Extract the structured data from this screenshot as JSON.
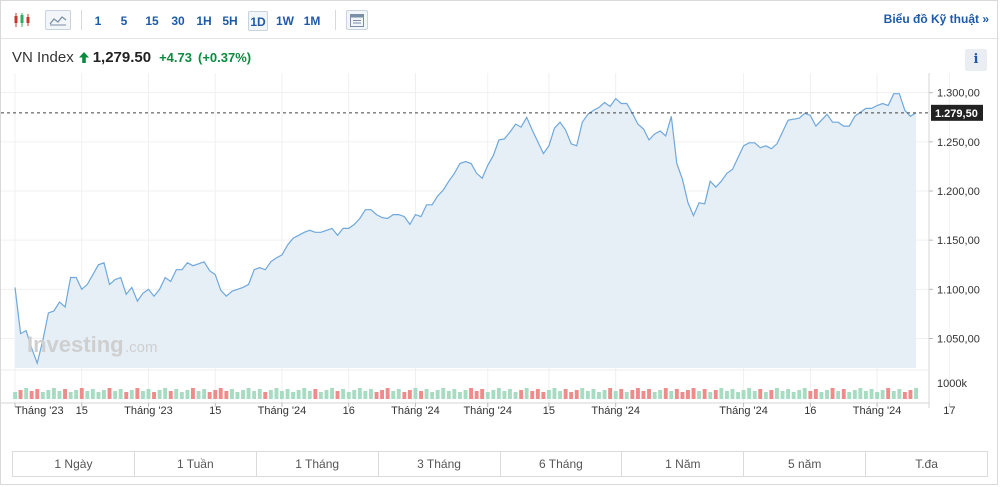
{
  "toolbar": {
    "icons": [
      "candlestick-icon",
      "area-chart-icon",
      "indicator-table-icon"
    ],
    "timeframes": [
      "1",
      "5",
      "15",
      "30",
      "1H",
      "5H",
      "1D",
      "1W",
      "1M"
    ],
    "active_timeframe": "1D",
    "tech_link": "Biểu đồ Kỹ thuật »"
  },
  "ticker": {
    "name": "VN Index",
    "arrow": "up-arrow-icon",
    "price": "1,279.50",
    "change": "+4.73",
    "change_pct": "(+0.37%)"
  },
  "info_button": "i",
  "watermark": {
    "brand": "Investing",
    "suffix": ".com"
  },
  "chart_data": {
    "type": "area",
    "series": [
      {
        "values": [
          1102,
          1055,
          1058,
          1040,
          1025,
          1048,
          1076,
          1078,
          1087,
          1082,
          1112,
          1112,
          1100,
          1105,
          1115,
          1125,
          1127,
          1105,
          1110,
          1112,
          1095,
          1102,
          1088,
          1096,
          1100,
          1093,
          1100,
          1112,
          1108,
          1120,
          1120,
          1127,
          1124,
          1126,
          1128,
          1119,
          1115,
          1099,
          1093,
          1098,
          1100,
          1102,
          1105,
          1120,
          1122,
          1120,
          1128,
          1132,
          1135,
          1145,
          1152,
          1155,
          1158,
          1160,
          1158,
          1158,
          1160,
          1162,
          1155,
          1162,
          1162,
          1166,
          1172,
          1181,
          1181,
          1176,
          1173,
          1172,
          1176,
          1176,
          1174,
          1166,
          1176,
          1174,
          1186,
          1186,
          1195,
          1201,
          1210,
          1218,
          1228,
          1230,
          1228,
          1218,
          1213,
          1226,
          1236,
          1252,
          1253,
          1260,
          1268,
          1265,
          1275,
          1262,
          1250,
          1238,
          1246,
          1264,
          1270,
          1262,
          1248,
          1246,
          1270,
          1278,
          1282,
          1285,
          1290,
          1286,
          1294,
          1289,
          1289,
          1279,
          1268,
          1263,
          1252,
          1258,
          1261,
          1256,
          1276,
          1228,
          1212,
          1188,
          1175,
          1188,
          1187,
          1210,
          1204,
          1210,
          1218,
          1222,
          1234,
          1246,
          1249,
          1249,
          1244,
          1246,
          1243,
          1248,
          1260,
          1272,
          1273,
          1274,
          1279,
          1277,
          1266,
          1272,
          1278,
          1270,
          1270,
          1266,
          1266,
          1276,
          1280,
          1284,
          1284,
          1287,
          1289,
          1287,
          1299,
          1299,
          1282,
          1276,
          1279.5
        ]
      }
    ],
    "volume_max": 1000,
    "volume_colors": "mixed-up-down",
    "ylim": [
      1020,
      1320
    ],
    "yticks": [
      "1.300,00",
      "1.250,00",
      "1.200,00",
      "1.150,00",
      "1.100,00",
      "1.050,00"
    ],
    "ytick_values": [
      1300,
      1250,
      1200,
      1150,
      1100,
      1050
    ],
    "volume_label": "1000k",
    "last_value_label": "1.279,50",
    "last_value": 1279.5,
    "xticks": [
      "Tháng '23",
      "15",
      "Tháng '23",
      "15",
      "Tháng '24",
      "16",
      "Tháng '24",
      "Tháng '24",
      "15",
      "Tháng '24",
      "Tháng '24",
      "16",
      "Tháng '24",
      "17"
    ],
    "xtick_index": [
      0,
      12,
      24,
      36,
      48,
      60,
      72,
      85,
      96,
      108,
      131,
      143,
      155,
      168
    ],
    "grid": true,
    "line_color": "#6fa8dc",
    "fill_color": "#e6eef6",
    "up_color": "#a7dcc2",
    "down_color": "#f08b8b"
  },
  "ranges": [
    "1 Ngày",
    "1 Tuần",
    "1 Tháng",
    "3 Tháng",
    "6 Tháng",
    "1 Năm",
    "5 năm",
    "T.đa"
  ]
}
